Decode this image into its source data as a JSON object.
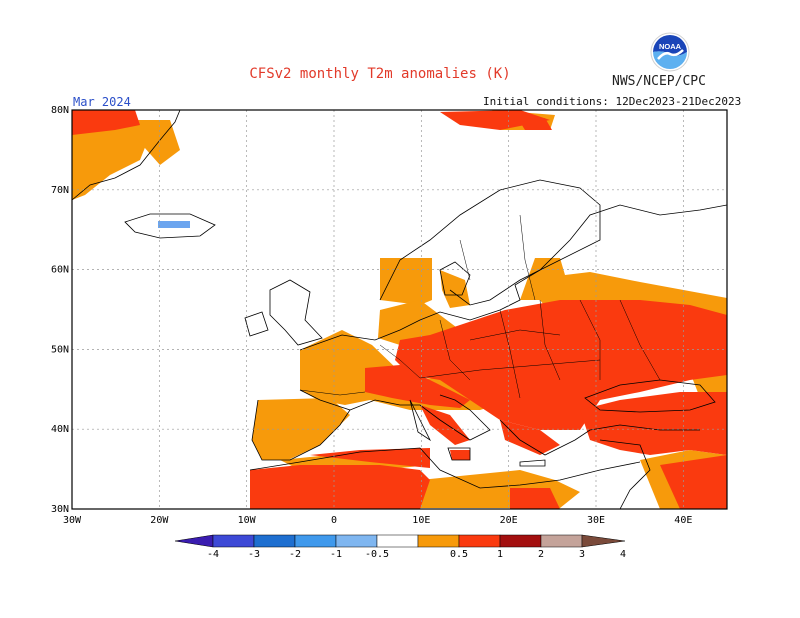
{
  "header": {
    "title": "CFSv2 monthly T2m anomalies (K)",
    "agency": "NWS/NCEP/CPC",
    "logo_text": "NOAA",
    "valid_month": "Mar 2024",
    "initial_conditions": "Initial conditions: 12Dec2023-21Dec2023"
  },
  "map": {
    "lon_range": [
      -30,
      45
    ],
    "lat_range": [
      30,
      80
    ],
    "lat_labels": [
      "30N",
      "40N",
      "50N",
      "60N",
      "70N",
      "80N"
    ],
    "lon_labels": [
      "30W",
      "20W",
      "10W",
      "0",
      "10E",
      "20E",
      "30E",
      "40E"
    ]
  },
  "colorbar": {
    "labels": [
      "-4",
      "-3",
      "-2",
      "-1",
      "-0.5",
      "0.5",
      "1",
      "2",
      "3",
      "4"
    ],
    "colors": [
      "#3a1cb0",
      "#3d49d6",
      "#1e6fd0",
      "#3f99ec",
      "#7fb6f0",
      "#ffffff",
      "#f79a0b",
      "#fa3a0f",
      "#a30f0f",
      "#c4a39a",
      "#7a4a3a"
    ]
  },
  "anomaly_colors": {
    "light_orange": "#f79a0b",
    "red_orange": "#fa3a0f",
    "dark_red": "#a30f0f",
    "light_blue": "#6ba5ef"
  }
}
